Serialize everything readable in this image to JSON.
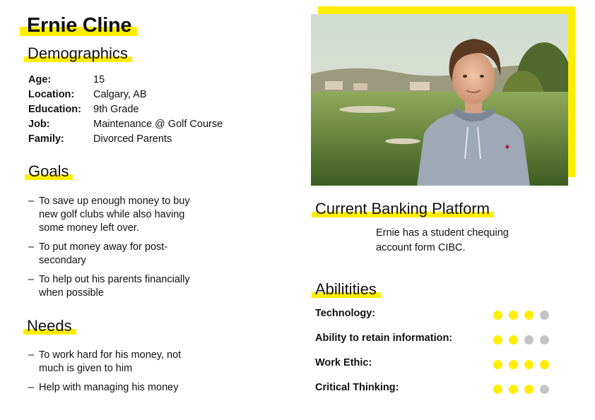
{
  "persona": {
    "name": "Ernie Cline"
  },
  "demographics": {
    "heading": "Demographics",
    "rows": [
      {
        "label": "Age:",
        "value": "15"
      },
      {
        "label": "Location:",
        "value": "Calgary, AB"
      },
      {
        "label": "Education:",
        "value": "9th Grade"
      },
      {
        "label": "Job:",
        "value": "Maintenance @ Golf Course"
      },
      {
        "label": "Family:",
        "value": "Divorced Parents"
      }
    ]
  },
  "goals": {
    "heading": "Goals",
    "items": [
      "To save up enough money to buy new golf clubs while also having some money left over.",
      "To put money away for post-secondary",
      "To help out his parents financially when possible"
    ]
  },
  "needs": {
    "heading": "Needs",
    "items": [
      "To work hard for his money, not much is given to him",
      "Help with managing his money"
    ]
  },
  "banking": {
    "heading": "Current Banking Platform",
    "text": "Ernie has a student chequing account form CIBC."
  },
  "abilities": {
    "heading": "Abilitities",
    "max": 4,
    "items": [
      {
        "label": "Technology:",
        "rating": 3
      },
      {
        "label": "Ability to retain information:",
        "rating": 2
      },
      {
        "label": "Work Ethic:",
        "rating": 4
      },
      {
        "label": "Critical Thinking:",
        "rating": 3
      }
    ]
  },
  "colors": {
    "accent": "#ffee00",
    "dot_off": "#c4c4c4"
  }
}
